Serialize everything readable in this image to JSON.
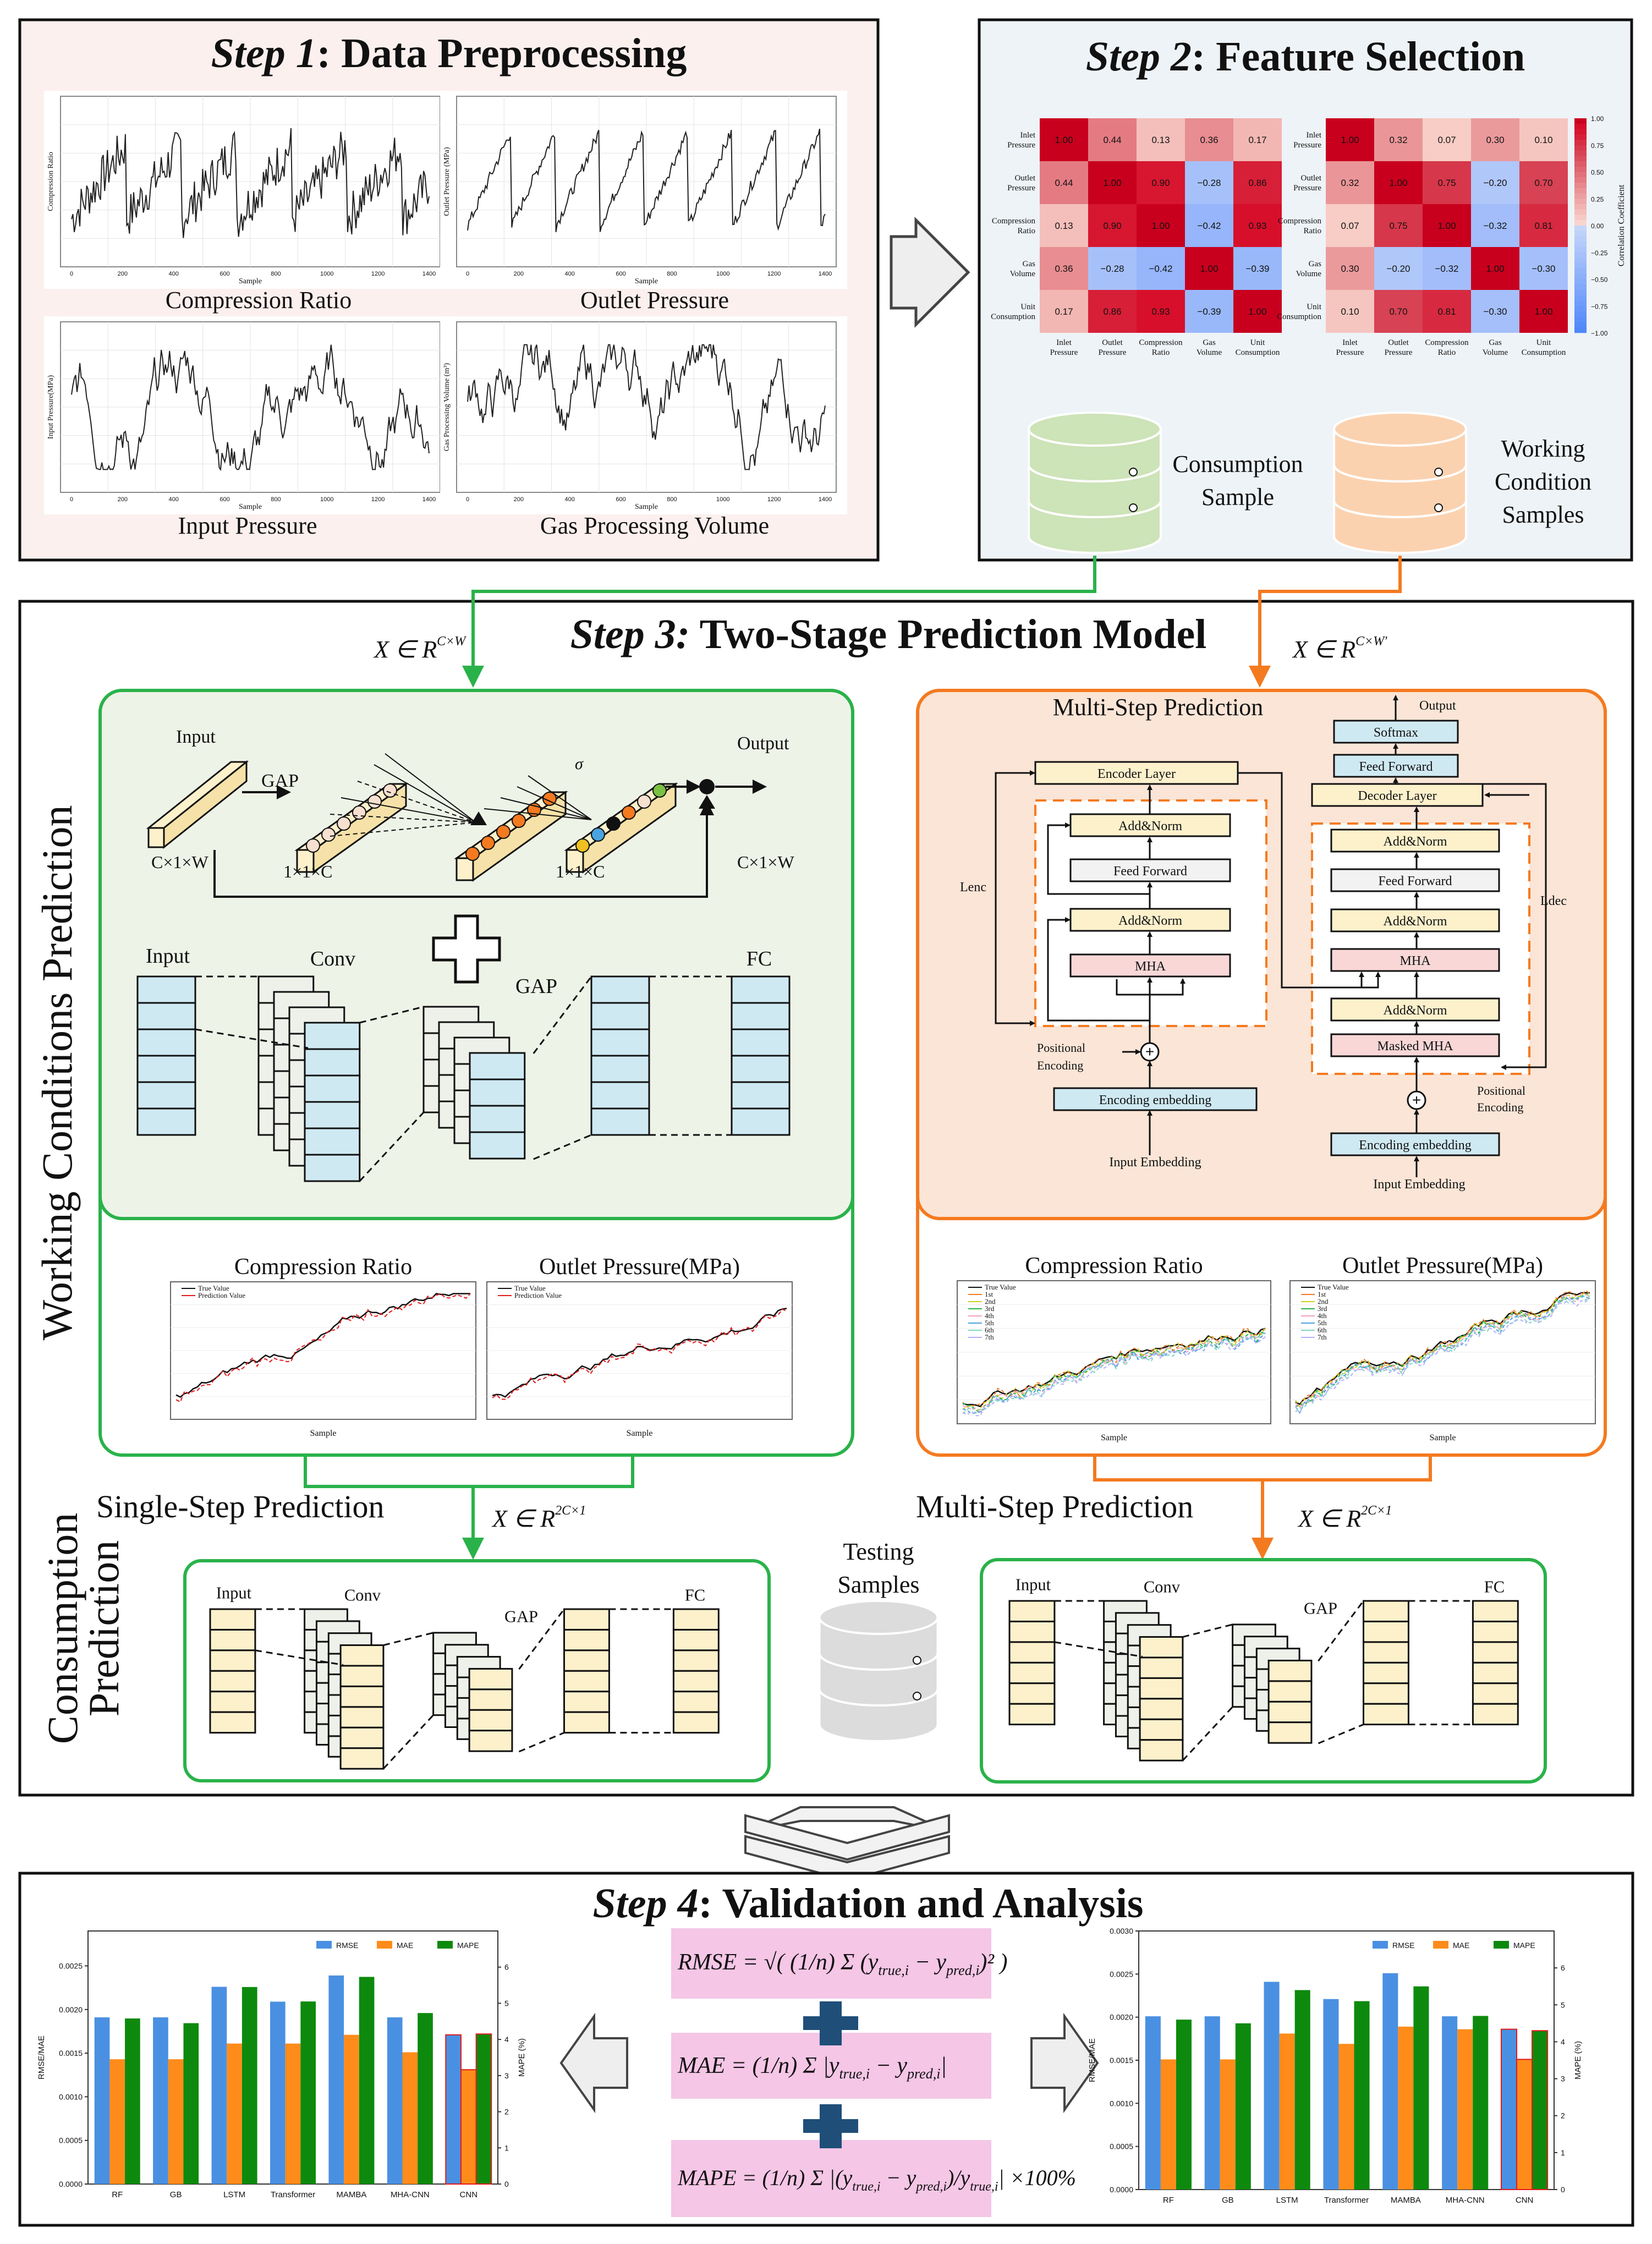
{
  "step1": {
    "step": "Step 1",
    "title": ": Data Preprocessing",
    "plots": [
      {
        "caption": "Compression Ratio",
        "ylabel": "Compression Ratio",
        "xlabel": "Sample"
      },
      {
        "caption": "Outlet Pressure",
        "ylabel": "Outlet Pressure (MPa)",
        "xlabel": "Sample"
      },
      {
        "caption": "Input Pressure",
        "ylabel": "Input Pressure(MPa)",
        "xlabel": "Sample"
      },
      {
        "caption": "Gas Processing Volume",
        "ylabel": "Gas Processing Volume (m³)",
        "xlabel": "Sample"
      }
    ],
    "x_ticks": [
      "0",
      "200",
      "400",
      "600",
      "800",
      "1000",
      "1200",
      "1400"
    ]
  },
  "step2": {
    "step": "Step 2",
    "title": ": Feature Selection",
    "heatmap_labels": [
      "Inlet Pressure",
      "Outlet Pressure",
      "Compression Ratio",
      "Gas Volume",
      "Unit Consumption"
    ],
    "heatmap_left": [
      [
        "1.00",
        "0.44",
        "0.13",
        "0.36",
        "0.17"
      ],
      [
        "0.44",
        "1.00",
        "0.90",
        "−0.28",
        "0.86"
      ],
      [
        "0.13",
        "0.90",
        "1.00",
        "−0.42",
        "0.93"
      ],
      [
        "0.36",
        "−0.28",
        "−0.42",
        "1.00",
        "−0.39"
      ],
      [
        "0.17",
        "0.86",
        "0.93",
        "−0.39",
        "1.00"
      ]
    ],
    "heatmap_right": [
      [
        "1.00",
        "0.32",
        "0.07",
        "0.30",
        "0.10"
      ],
      [
        "0.32",
        "1.00",
        "0.75",
        "−0.20",
        "0.70"
      ],
      [
        "0.07",
        "0.75",
        "1.00",
        "−0.32",
        "0.81"
      ],
      [
        "0.30",
        "−0.20",
        "−0.32",
        "1.00",
        "−0.30"
      ],
      [
        "0.10",
        "0.70",
        "0.81",
        "−0.30",
        "1.00"
      ]
    ],
    "colorbar_ticks": [
      "1.00",
      "0.75",
      "0.50",
      "0.25",
      "0.00",
      "−0.25",
      "−0.50",
      "−0.75",
      "−1.00"
    ],
    "colorbar_label": "Correlation Coefficient",
    "consumption_label_1": "Consumption",
    "consumption_label_2": "Sample",
    "working_label_1": "Working",
    "working_label_2": "Condition",
    "working_label_3": "Samples",
    "colors": {
      "pos": "#d7191c",
      "neg": "#2c7bf6",
      "green_db": "#cde3b8",
      "orange_db": "#fbd2b0"
    }
  },
  "step3": {
    "step": "Step 3:",
    "title": " Two-Stage Prediction Model",
    "x_left": "X ∈ R",
    "x_left_sup": "C×W",
    "x_right": "X ∈ R",
    "x_right_sup": "C×W'",
    "side_working": "Working Conditions Prediction",
    "side_consumption_1": "Consumption",
    "side_consumption_2": "Prediction",
    "se": {
      "input": "Input",
      "output": "Output",
      "gap": "GAP",
      "sigma": "σ",
      "cxw_left": "C×1×W",
      "c1": "1×1×C",
      "c2": "1×1×C",
      "cxw_right": "C×1×W"
    },
    "cnn_left": {
      "input": "Input",
      "conv": "Conv",
      "gap": "GAP",
      "fc": "FC"
    },
    "transformer": {
      "title": "Multi-Step Prediction",
      "output": "Output",
      "softmax": "Softmax",
      "feed_forward_top": "Feed Forward",
      "decoder_layer": "Decoder Layer",
      "encoder_layer": "Encoder Layer",
      "addnorm": "Add&Norm",
      "feed_forward": "Feed Forward",
      "mha": "MHA",
      "masked_mha": "Masked MHA",
      "lenc": "Lenc",
      "ldec": "Ldec",
      "pos_enc_1": "Positional",
      "pos_enc_2": "Encoding",
      "enc_embed": "Encoding embedding",
      "input_embedding": "Input Embedding"
    },
    "pred_left": [
      {
        "title": "Compression Ratio",
        "legend": [
          "True Value",
          "Prediction Value"
        ],
        "xlabel": "Sample"
      },
      {
        "title": "Outlet Pressure(MPa)",
        "legend": [
          "True Value",
          "Prediction Value"
        ],
        "xlabel": "Sample"
      }
    ],
    "pred_right": [
      {
        "title": "Compression Ratio",
        "legend": [
          "True Value",
          "1st",
          "2nd",
          "3rd",
          "4th",
          "5th",
          "6th",
          "7th"
        ],
        "xlabel": "Sample"
      },
      {
        "title": "Outlet Pressure(MPa)",
        "legend": [
          "True Value",
          "1st",
          "2nd",
          "3rd",
          "4th",
          "5th",
          "6th",
          "7th"
        ],
        "xlabel": "Sample"
      }
    ],
    "single_step": "Single-Step Prediction",
    "multi_step": "Multi-Step Prediction",
    "x_bottom": "X ∈ R",
    "x_bottom_sup": "2C×1",
    "testing_1": "Testing",
    "testing_2": "Samples",
    "cnn_bottom": {
      "input": "Input",
      "conv": "Conv",
      "gap": "GAP",
      "fc": "FC"
    },
    "colors": {
      "green": "#2ab24a",
      "orange": "#f47a20",
      "green_bg": "#eef3e8",
      "orange_bg": "#fbe5d6",
      "cell_blue": "#cfe9f2",
      "cell_yellow": "#fdf1cc"
    }
  },
  "step4": {
    "step": "Step 4",
    "title": ": Validation and Analysis",
    "formula_rmse": "RMSE",
    "formula_mae": "MAE",
    "formula_mape": "MAPE",
    "plus": "+",
    "legend": [
      "RMSE",
      "MAE",
      "MAPE"
    ],
    "ylabel_left": "RMSE/MAE",
    "ylabel_right": "MAPE (%)"
  },
  "chart_data": [
    {
      "type": "bar",
      "title": "",
      "categories": [
        "RF",
        "GB",
        "LSTM",
        "Transformer",
        "MAMBA",
        "MHA-CNN",
        "CNN"
      ],
      "series": [
        {
          "name": "RMSE",
          "values": [
            0.00191,
            0.00191,
            0.00226,
            0.00209,
            0.00239,
            0.00191,
            0.00171
          ]
        },
        {
          "name": "MAE",
          "values": [
            0.00143,
            0.00143,
            0.00161,
            0.00161,
            0.00171,
            0.00151,
            0.00131
          ]
        },
        {
          "name": "MAPE",
          "values": [
            4.58,
            4.45,
            5.45,
            5.05,
            5.73,
            4.73,
            4.15
          ]
        }
      ],
      "ylabel": "RMSE/MAE",
      "y2label": "MAPE (%)",
      "ylim": [
        0,
        0.0029
      ],
      "y2lim": [
        0,
        7
      ],
      "yticks": [
        "0.0000",
        "0.0005",
        "0.0010",
        "0.0015",
        "0.0020",
        "0.0025"
      ],
      "y2ticks": [
        "0",
        "1",
        "2",
        "3",
        "4",
        "5",
        "6"
      ]
    },
    {
      "type": "bar",
      "title": "",
      "categories": [
        "RF",
        "GB",
        "LSTM",
        "Transformer",
        "MAMBA",
        "MHA-CNN",
        "CNN"
      ],
      "series": [
        {
          "name": "RMSE",
          "values": [
            0.00201,
            0.00201,
            0.00241,
            0.00221,
            0.00251,
            0.00201,
            0.00186
          ]
        },
        {
          "name": "MAE",
          "values": [
            0.00151,
            0.00151,
            0.00181,
            0.00169,
            0.00189,
            0.00186,
            0.00151
          ]
        },
        {
          "name": "MAPE",
          "values": [
            4.6,
            4.5,
            5.4,
            5.1,
            5.5,
            4.7,
            4.3
          ]
        }
      ],
      "ylabel": "RMSE/MAE",
      "y2label": "MAPE (%)",
      "ylim": [
        0,
        0.003
      ],
      "y2lim": [
        0,
        7
      ],
      "yticks": [
        "0.0000",
        "0.0005",
        "0.0010",
        "0.0015",
        "0.0020",
        "0.0025",
        "0.0030"
      ],
      "y2ticks": [
        "0",
        "1",
        "2",
        "3",
        "4",
        "5",
        "6"
      ]
    }
  ]
}
